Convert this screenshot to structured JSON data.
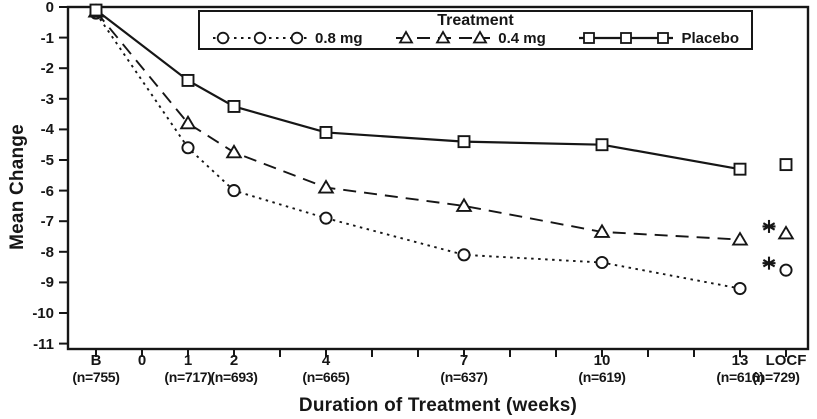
{
  "figure": {
    "background": "#ffffff",
    "ink": "#161616"
  },
  "chart_data": {
    "type": "line",
    "title": "",
    "xlabel": "Duration of Treatment (weeks)",
    "ylabel": "Mean Change",
    "ylim": [
      -11,
      0
    ],
    "grid": false,
    "y_ticks": [
      0,
      -1,
      -2,
      -3,
      -4,
      -5,
      -6,
      -7,
      -8,
      -9,
      -10,
      -11
    ],
    "x_ticks": [
      {
        "label": "B",
        "week": -1,
        "n": "(n=755)"
      },
      {
        "label": "0",
        "week": 0,
        "n": ""
      },
      {
        "label": "1",
        "week": 1,
        "n": "(n=717)"
      },
      {
        "label": "2",
        "week": 2,
        "n": "(n=693)"
      },
      {
        "label": "4",
        "week": 4,
        "n": "(n=665)"
      },
      {
        "label": "7",
        "week": 7,
        "n": "(n=637)"
      },
      {
        "label": "10",
        "week": 10,
        "n": "(n=619)"
      },
      {
        "label": "13",
        "week": 13,
        "n": "(n=616)"
      },
      {
        "label": "LOCF",
        "week": 14,
        "n": "(n=729)"
      }
    ],
    "minor_tick_weeks": [
      3,
      5,
      6,
      8,
      9,
      11,
      12
    ],
    "legend": {
      "title": "Treatment",
      "position": "top-inside"
    },
    "series": [
      {
        "name": "0.8 mg",
        "marker": "circle",
        "line_style": "dotted",
        "weeks": [
          -1,
          1,
          2,
          4,
          7,
          10,
          13
        ],
        "values": [
          -0.2,
          -4.6,
          -6.0,
          -6.9,
          -8.1,
          -8.35,
          -9.2
        ],
        "locf": {
          "week": 14,
          "value": -8.6,
          "flag": "*"
        }
      },
      {
        "name": "0.4 mg",
        "marker": "triangle",
        "line_style": "dashed",
        "weeks": [
          -1,
          1,
          2,
          4,
          7,
          10,
          13
        ],
        "values": [
          -0.15,
          -3.8,
          -4.75,
          -5.9,
          -6.5,
          -7.35,
          -7.6
        ],
        "locf": {
          "week": 14,
          "value": -7.4,
          "flag": "*"
        }
      },
      {
        "name": "Placebo",
        "marker": "square",
        "line_style": "solid",
        "weeks": [
          -1,
          1,
          2,
          4,
          7,
          10,
          13
        ],
        "values": [
          -0.1,
          -2.4,
          -3.25,
          -4.1,
          -4.4,
          -4.5,
          -5.3
        ],
        "locf": {
          "week": 14,
          "value": -5.15,
          "flag": ""
        }
      }
    ]
  }
}
